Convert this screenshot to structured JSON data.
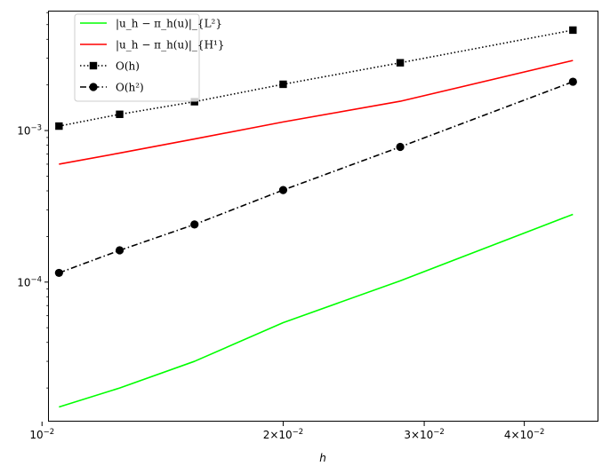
{
  "chart_data": {
    "type": "line",
    "xscale": "log",
    "yscale": "log",
    "xlabel": "h",
    "ylabel": "",
    "title": "",
    "xlim": [
      0.0102,
      0.0495
    ],
    "ylim": [
      1.2e-05,
      0.0061
    ],
    "grid": false,
    "legend_position": "top-left",
    "x_major_ticks": [
      {
        "value": 0.01,
        "label": "10",
        "exp": "−2",
        "mant": ""
      },
      {
        "value": 0.02,
        "label": "2×10",
        "exp": "−2",
        "mant": "2×"
      },
      {
        "value": 0.03,
        "label": "3×10",
        "exp": "−2",
        "mant": "3×"
      },
      {
        "value": 0.04,
        "label": "4×10",
        "exp": "−2",
        "mant": "4×"
      }
    ],
    "y_major_ticks": [
      {
        "value": 0.0001,
        "label": "10",
        "exp": "−4"
      },
      {
        "value": 0.001,
        "label": "10",
        "exp": "−3"
      }
    ],
    "series": [
      {
        "name": "|u_h − π_h(u)|_{L²}",
        "color": "#00ff00",
        "linestyle": "solid",
        "marker": "none",
        "x": [
          0.0105,
          0.0125,
          0.0155,
          0.02,
          0.028,
          0.046
        ],
        "y": [
          1.5e-05,
          2e-05,
          3e-05,
          5.4e-05,
          0.000102,
          0.00028
        ]
      },
      {
        "name": "|u_h − π_h(u)|_{H¹}",
        "color": "#ff0000",
        "linestyle": "solid",
        "marker": "none",
        "x": [
          0.0105,
          0.0125,
          0.0155,
          0.02,
          0.028,
          0.046
        ],
        "y": [
          0.0006,
          0.00071,
          0.00088,
          0.00114,
          0.00156,
          0.0029
        ]
      },
      {
        "name": "O(h)",
        "color": "#000000",
        "linestyle": "dotted",
        "marker": "square",
        "x": [
          0.0105,
          0.0125,
          0.0155,
          0.02,
          0.028,
          0.046
        ],
        "y": [
          0.00107,
          0.00128,
          0.00155,
          0.00202,
          0.0028,
          0.0046
        ]
      },
      {
        "name": "O(h²)",
        "color": "#000000",
        "linestyle": "dashdot",
        "marker": "circle",
        "x": [
          0.0105,
          0.0125,
          0.0155,
          0.02,
          0.028,
          0.046
        ],
        "y": [
          0.000115,
          0.000162,
          0.00024,
          0.000405,
          0.00078,
          0.0021
        ]
      }
    ]
  }
}
